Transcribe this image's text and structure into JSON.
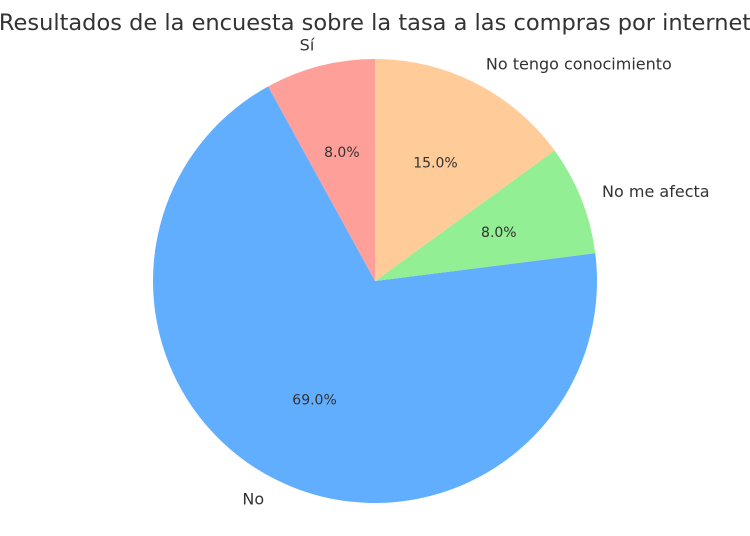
{
  "chart_data": {
    "type": "pie",
    "title": "Resultados de la encuesta sobre la tasa a las compras por internet",
    "categories": [
      "Sí",
      "No",
      "No me afecta",
      "No tengo conocimiento"
    ],
    "values": [
      8.0,
      69.0,
      8.0,
      15.0
    ],
    "value_labels": [
      "8.0%",
      "69.0%",
      "8.0%",
      "15.0%"
    ],
    "colors": [
      "#ff9f9a",
      "#61aeff",
      "#93ef93",
      "#ffcc99"
    ],
    "start_angle": 90,
    "direction": "counterclockwise",
    "legend": "none"
  }
}
